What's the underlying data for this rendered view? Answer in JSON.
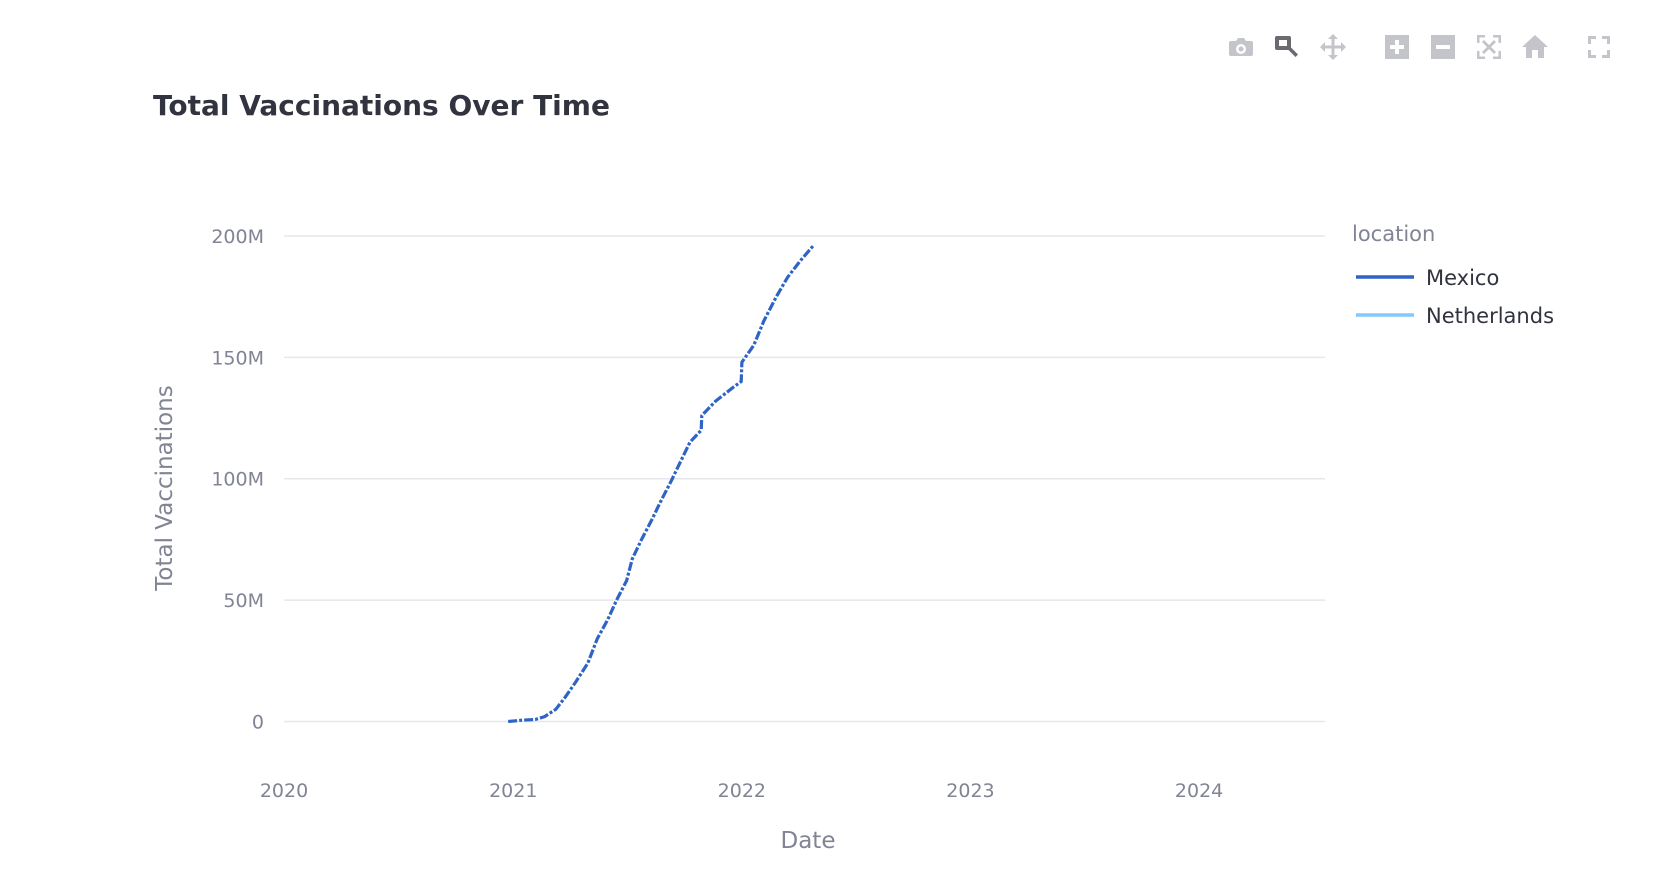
{
  "toolbar": {
    "buttons": [
      {
        "icon": "camera-icon",
        "title": "Download plot as a png"
      },
      {
        "icon": "zoom-icon",
        "title": "Zoom",
        "active": true
      },
      {
        "icon": "pan-icon",
        "title": "Pan"
      },
      {
        "icon": "zoom-in-icon",
        "title": "Zoom in"
      },
      {
        "icon": "zoom-out-icon",
        "title": "Zoom out"
      },
      {
        "icon": "autoscale-icon",
        "title": "Autoscale"
      },
      {
        "icon": "home-icon",
        "title": "Reset axes"
      },
      {
        "icon": "fullscreen-icon",
        "title": "Fullscreen"
      }
    ]
  },
  "chart_data": {
    "type": "line",
    "title": "Total Vaccinations Over Time",
    "xlabel": "Date",
    "ylabel": "Total Vaccinations",
    "x_ticks": [
      "2020",
      "2021",
      "2022",
      "2023",
      "2024"
    ],
    "y_ticks": [
      "0",
      "50M",
      "100M",
      "150M",
      "200M"
    ],
    "xlim": [
      "2020-01-01",
      "2024-07-20"
    ],
    "ylim": [
      -20000000,
      200000000
    ],
    "grid": true,
    "legend": {
      "title": "location",
      "placement": "right"
    },
    "series": [
      {
        "name": "Mexico",
        "color": "#2e64c5",
        "points": [
          [
            "2020-12-24",
            0
          ],
          [
            "2021-01-15",
            500000
          ],
          [
            "2021-02-05",
            800000
          ],
          [
            "2021-02-20",
            2000000
          ],
          [
            "2021-03-10",
            5000000
          ],
          [
            "2021-03-25",
            10000000
          ],
          [
            "2021-04-10",
            16000000
          ],
          [
            "2021-04-30",
            24000000
          ],
          [
            "2021-05-15",
            34000000
          ],
          [
            "2021-06-01",
            42000000
          ],
          [
            "2021-06-15",
            50000000
          ],
          [
            "2021-07-01",
            58000000
          ],
          [
            "2021-07-10",
            67000000
          ],
          [
            "2021-07-25",
            75000000
          ],
          [
            "2021-08-10",
            83000000
          ],
          [
            "2021-08-25",
            91000000
          ],
          [
            "2021-09-10",
            99000000
          ],
          [
            "2021-09-25",
            107000000
          ],
          [
            "2021-10-10",
            115000000
          ],
          [
            "2021-10-28",
            120000000
          ],
          [
            "2021-10-29",
            126000000
          ],
          [
            "2021-11-20",
            132000000
          ],
          [
            "2021-12-20",
            138000000
          ],
          [
            "2021-12-31",
            140000000
          ],
          [
            "2022-01-01",
            148000000
          ],
          [
            "2022-01-20",
            155000000
          ],
          [
            "2022-02-05",
            165000000
          ],
          [
            "2022-02-25",
            175000000
          ],
          [
            "2022-03-15",
            183000000
          ],
          [
            "2022-04-05",
            190000000
          ],
          [
            "2022-04-25",
            196000000
          ]
        ]
      },
      {
        "name": "Netherlands",
        "color": "#83c9ff",
        "points": []
      }
    ]
  }
}
